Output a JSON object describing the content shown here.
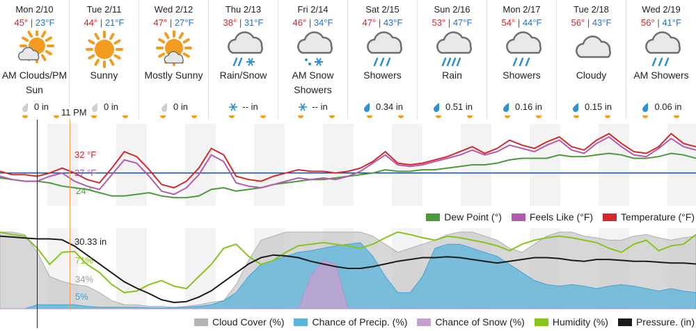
{
  "days": [
    {
      "name": "Mon 2/10",
      "hi": "45°",
      "lo": "23°F",
      "cond": "AM Clouds/PM Sun",
      "icon": "partly-sunny-icon",
      "precip_icon": "drop-gray-icon",
      "precip": "0 in"
    },
    {
      "name": "Tue 2/11",
      "hi": "44°",
      "lo": "21°F",
      "cond": "Sunny",
      "icon": "sun-icon",
      "precip_icon": "drop-gray-icon",
      "precip": "0 in"
    },
    {
      "name": "Wed 2/12",
      "hi": "47°",
      "lo": "27°F",
      "cond": "Mostly Sunny",
      "icon": "mostly-sunny-icon",
      "precip_icon": "drop-gray-icon",
      "precip": "0 in"
    },
    {
      "name": "Thu 2/13",
      "hi": "38°",
      "lo": "31°F",
      "cond": "Rain/Snow",
      "icon": "rain-snow-icon",
      "precip_icon": "snowflake-icon",
      "precip": "-- in"
    },
    {
      "name": "Fri 2/14",
      "hi": "46°",
      "lo": "34°F",
      "cond": "AM Snow Showers",
      "icon": "snow-showers-icon",
      "precip_icon": "snowflake-icon",
      "precip": "-- in"
    },
    {
      "name": "Sat 2/15",
      "hi": "47°",
      "lo": "43°F",
      "cond": "Showers",
      "icon": "showers-icon",
      "precip_icon": "drop-blue-icon",
      "precip": "0.34 in"
    },
    {
      "name": "Sun 2/16",
      "hi": "53°",
      "lo": "47°F",
      "cond": "Rain",
      "icon": "rain-icon",
      "precip_icon": "drop-blue-icon",
      "precip": "0.51 in"
    },
    {
      "name": "Mon 2/17",
      "hi": "54°",
      "lo": "44°F",
      "cond": "Showers",
      "icon": "showers-icon",
      "precip_icon": "drop-blue-icon",
      "precip": "0.16 in"
    },
    {
      "name": "Tue 2/18",
      "hi": "56°",
      "lo": "43°F",
      "cond": "Cloudy",
      "icon": "cloud-icon",
      "precip_icon": "drop-blue-icon",
      "precip": "0.15 in"
    },
    {
      "name": "Wed 2/19",
      "hi": "56°",
      "lo": "41°F",
      "cond": "AM Showers",
      "icon": "showers-icon",
      "precip_icon": "drop-blue-icon",
      "precip": "0.06 in"
    }
  ],
  "cursor_time": "11 PM",
  "colors": {
    "hi": "#d4282b",
    "lo": "#2f6fc0",
    "temperature": "#d4282b",
    "feels_like": "#b35aae",
    "dew_point": "#4c9a3c",
    "freezing": "#1f4e8c",
    "cloud": "#b4b4b4",
    "precip": "#5ab4dc",
    "snow": "#c8a0d0",
    "humidity": "#88c31e",
    "pressure": "#1a1a1a",
    "sun": "#f39c1f"
  },
  "chart_data": [
    {
      "type": "line",
      "title": "",
      "readout": {
        "temperature": "32 °F",
        "feels_like": "27 °F",
        "dew_point": "24 °"
      },
      "legend": [
        {
          "name": "Dew Point (°)",
          "color": "#4c9a3c"
        },
        {
          "name": "Feels Like (°F)",
          "color": "#b35aae"
        },
        {
          "name": "Temperature (°F)",
          "color": "#d4282b"
        }
      ],
      "legend_position": "bottom-right",
      "series": [
        {
          "name": "Temperature (°F)",
          "values": [
            33,
            31,
            31,
            30,
            32,
            35,
            32,
            28,
            26,
            35,
            45,
            42,
            34,
            25,
            23,
            27,
            35,
            47,
            43,
            30,
            28,
            27,
            30,
            32,
            34,
            33,
            33,
            32,
            33,
            35,
            39,
            45,
            38,
            37,
            38,
            40,
            42,
            45,
            48,
            44,
            47,
            52,
            49,
            47,
            51,
            54,
            48,
            46,
            52,
            56,
            50,
            45,
            44,
            48,
            56,
            50,
            48
          ]
        },
        {
          "name": "Feels Like (°F)",
          "values": [
            30,
            28,
            27,
            27,
            30,
            32,
            27,
            24,
            22,
            31,
            40,
            38,
            30,
            21,
            19,
            23,
            31,
            43,
            39,
            26,
            24,
            23,
            25,
            27,
            29,
            28,
            29,
            28,
            30,
            33,
            38,
            43,
            37,
            36,
            37,
            39,
            41,
            43,
            46,
            43,
            45,
            49,
            47,
            45,
            49,
            52,
            46,
            44,
            50,
            54,
            48,
            43,
            42,
            47,
            53,
            48,
            46
          ]
        },
        {
          "name": "Dew Point (°)",
          "values": [
            29,
            28,
            27,
            27,
            26,
            24,
            23,
            22,
            20,
            18,
            18,
            19,
            20,
            18,
            17,
            17,
            18,
            22,
            23,
            21,
            22,
            23,
            25,
            26,
            27,
            28,
            28,
            29,
            30,
            31,
            32,
            34,
            33,
            33,
            34,
            34,
            35,
            36,
            37,
            37,
            38,
            40,
            41,
            41,
            41,
            43,
            42,
            42,
            43,
            44,
            43,
            41,
            41,
            42,
            44,
            43,
            41
          ]
        }
      ],
      "freezing_line": 32,
      "ylim": [
        12,
        62
      ]
    },
    {
      "type": "area",
      "readout": {
        "pressure": "30.33 in",
        "humidity": "71%",
        "cloud_cover": "34%",
        "chance_precip": "5%"
      },
      "legend": [
        {
          "name": "Cloud Cover (%)",
          "color": "#b4b4b4"
        },
        {
          "name": "Chance of Precip. (%)",
          "color": "#5ab4dc"
        },
        {
          "name": "Chance of Snow (%)",
          "color": "#c8a0d0"
        },
        {
          "name": "Humidity (%)",
          "color": "#88c31e"
        },
        {
          "name": "Pressure. (in)",
          "color": "#1a1a1a"
        }
      ],
      "legend_position": "bottom",
      "series": [
        {
          "name": "Cloud Cover (%)",
          "values": [
            95,
            95,
            92,
            70,
            40,
            34,
            30,
            28,
            20,
            10,
            5,
            5,
            3,
            3,
            2,
            3,
            5,
            8,
            10,
            30,
            60,
            85,
            90,
            95,
            95,
            95,
            95,
            95,
            95,
            95,
            90,
            80,
            70,
            75,
            80,
            85,
            92,
            95,
            95,
            90,
            85,
            75,
            70,
            80,
            90,
            95,
            95,
            90,
            88,
            85,
            85,
            90,
            92,
            88,
            85,
            88,
            90
          ]
        },
        {
          "name": "Chance of Precip. (%)",
          "values": [
            0,
            0,
            0,
            5,
            5,
            5,
            5,
            3,
            2,
            2,
            2,
            2,
            1,
            1,
            1,
            2,
            3,
            5,
            10,
            20,
            40,
            55,
            60,
            65,
            70,
            72,
            75,
            78,
            80,
            82,
            65,
            40,
            20,
            20,
            40,
            75,
            80,
            80,
            75,
            70,
            65,
            55,
            45,
            35,
            30,
            28,
            30,
            28,
            25,
            28,
            30,
            28,
            25,
            22,
            25,
            22,
            20
          ]
        },
        {
          "name": "Chance of Snow (%)",
          "values": [
            0,
            0,
            0,
            0,
            0,
            0,
            0,
            0,
            0,
            0,
            0,
            0,
            0,
            0,
            0,
            0,
            0,
            0,
            0,
            0,
            0,
            0,
            0,
            0,
            0,
            40,
            60,
            55,
            0,
            0,
            0,
            0,
            0,
            0,
            0,
            0,
            0,
            0,
            0,
            0,
            0,
            0,
            0,
            0,
            0,
            0,
            0,
            0,
            0,
            0,
            0,
            0,
            0,
            0,
            0,
            0,
            0
          ]
        },
        {
          "name": "Humidity (%)",
          "values": [
            95,
            92,
            90,
            75,
            55,
            70,
            71,
            55,
            45,
            30,
            20,
            22,
            30,
            35,
            28,
            25,
            40,
            55,
            75,
            80,
            65,
            55,
            60,
            70,
            78,
            80,
            82,
            80,
            78,
            75,
            80,
            88,
            95,
            92,
            88,
            85,
            90,
            88,
            85,
            82,
            78,
            72,
            80,
            85,
            88,
            90,
            88,
            85,
            82,
            75,
            70,
            80,
            85,
            72,
            78,
            80,
            92
          ]
        },
        {
          "name": "Pressure. (in)",
          "values": [
            30.36,
            30.35,
            30.34,
            30.33,
            30.33,
            30.32,
            30.25,
            30.15,
            30.05,
            29.95,
            29.85,
            29.78,
            29.72,
            29.65,
            29.62,
            29.63,
            29.68,
            29.75,
            29.85,
            29.95,
            30.05,
            30.12,
            30.15,
            30.14,
            30.12,
            30.08,
            30.05,
            30.02,
            30.0,
            30.0,
            30.02,
            30.05,
            30.08,
            30.1,
            30.12,
            30.12,
            30.13,
            30.12,
            30.1,
            30.08,
            30.06,
            30.08,
            30.1,
            30.12,
            30.12,
            30.11,
            30.09,
            30.08,
            30.1,
            30.1,
            30.09,
            30.08,
            30.08,
            30.07,
            30.06,
            30.06,
            30.05
          ]
        }
      ],
      "ylim_percent": [
        0,
        100
      ],
      "ylim_pressure": [
        29.55,
        30.45
      ]
    }
  ]
}
